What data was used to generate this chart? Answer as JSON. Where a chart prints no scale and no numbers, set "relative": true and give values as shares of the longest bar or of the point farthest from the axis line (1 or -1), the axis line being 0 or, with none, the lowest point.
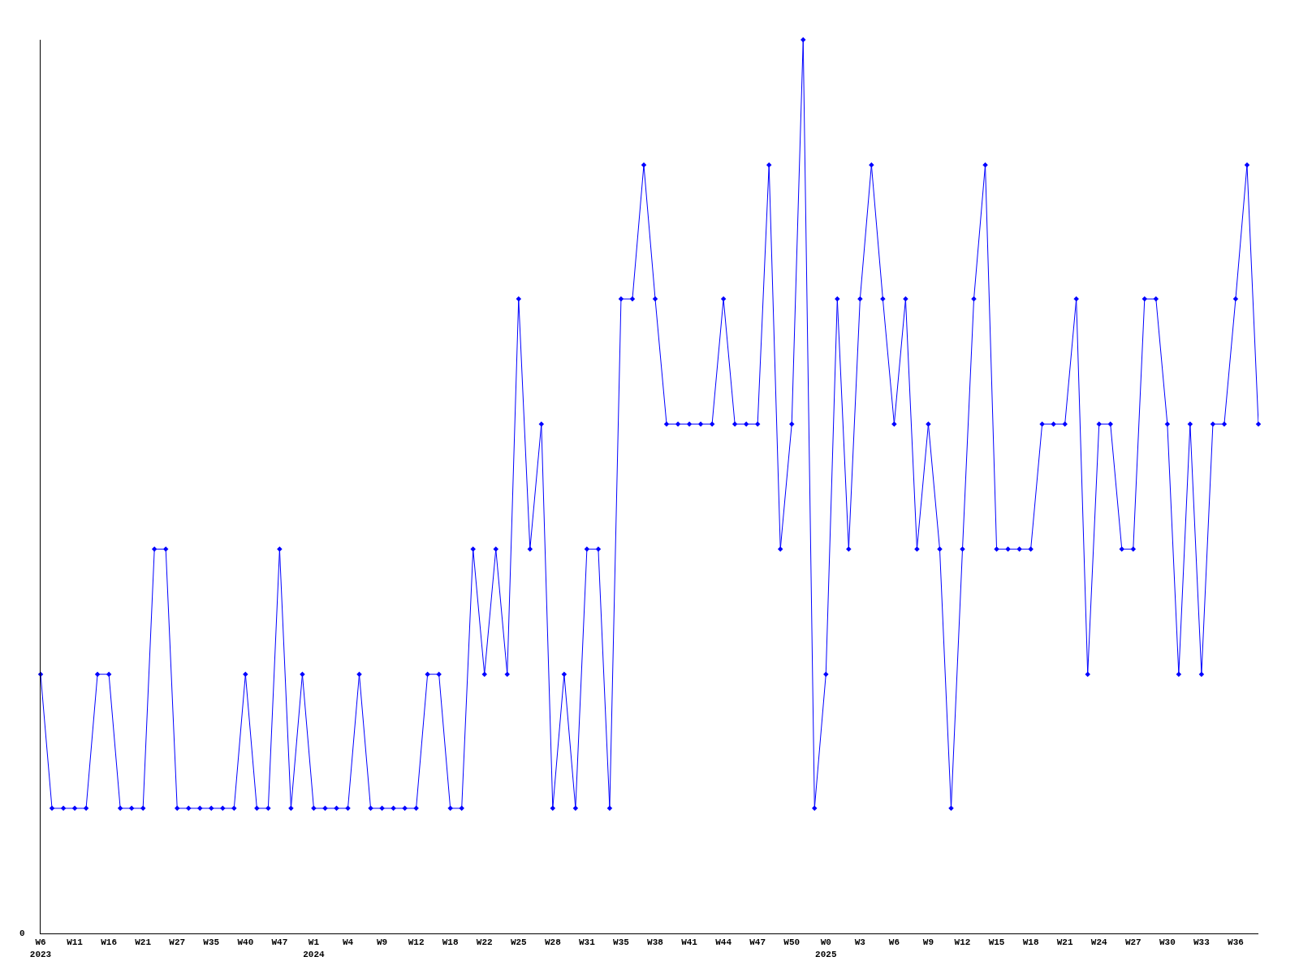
{
  "chart_data": {
    "type": "line",
    "relative": true,
    "annotations": [
      "0"
    ],
    "marker": "diamond",
    "grid": false,
    "legend": false,
    "categories": [
      "W6\n2023",
      null,
      null,
      "W11",
      null,
      null,
      "W16",
      null,
      null,
      "W21",
      null,
      null,
      "W27",
      null,
      null,
      "W35",
      null,
      null,
      "W40",
      null,
      null,
      "W47",
      null,
      null,
      "W1\n2024",
      null,
      null,
      "W4",
      null,
      null,
      "W9",
      null,
      null,
      "W12",
      null,
      null,
      "W18",
      null,
      null,
      "W22",
      null,
      null,
      "W25",
      null,
      null,
      "W28",
      null,
      null,
      "W31",
      null,
      null,
      "W35",
      null,
      null,
      "W38",
      null,
      null,
      "W41",
      null,
      null,
      "W44",
      null,
      null,
      "W47",
      null,
      null,
      "W50",
      null,
      null,
      "W0\n2025",
      null,
      null,
      "W3",
      null,
      null,
      "W6",
      null,
      null,
      "W9",
      null,
      null,
      "W12",
      null,
      null,
      "W15",
      null,
      null,
      "W18",
      null,
      null,
      "W21",
      null,
      null,
      "W24",
      null,
      null,
      "W27",
      null,
      null,
      "W30",
      null,
      null,
      "W33",
      null,
      null,
      "W36",
      null,
      null
    ],
    "series": [
      {
        "color": "#0000ff",
        "values": [
          0.29,
          0.14,
          0.14,
          0.14,
          0.14,
          0.29,
          0.29,
          0.14,
          0.14,
          0.14,
          0.43,
          0.43,
          0.14,
          0.14,
          0.14,
          0.14,
          0.14,
          0.14,
          0.29,
          0.14,
          0.14,
          0.43,
          0.14,
          0.29,
          0.14,
          0.14,
          0.14,
          0.14,
          0.29,
          0.14,
          0.14,
          0.14,
          0.14,
          0.14,
          0.29,
          0.29,
          0.14,
          0.14,
          0.43,
          0.29,
          0.43,
          0.29,
          0.71,
          0.43,
          0.57,
          0.14,
          0.29,
          0.14,
          0.43,
          0.43,
          0.14,
          0.71,
          0.71,
          0.86,
          0.71,
          0.57,
          0.57,
          0.57,
          0.57,
          0.57,
          0.71,
          0.57,
          0.57,
          0.57,
          0.86,
          0.43,
          0.57,
          1,
          0.14,
          0.29,
          0.71,
          0.43,
          0.71,
          0.86,
          0.71,
          0.57,
          0.71,
          0.43,
          0.57,
          0.43,
          0.14,
          0.43,
          0.71,
          0.86,
          0.43,
          0.43,
          0.43,
          0.43,
          0.57,
          0.57,
          0.57,
          0.71,
          0.29,
          0.57,
          0.57,
          0.43,
          0.43,
          0.71,
          0.71,
          0.57,
          0.29,
          0.57,
          0.29,
          0.57,
          0.57,
          0.71,
          0.86,
          0.57
        ]
      }
    ]
  }
}
